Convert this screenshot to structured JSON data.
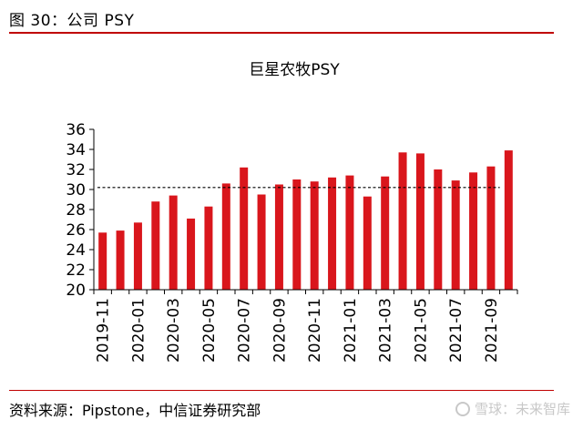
{
  "header": {
    "figure_label": "图 30：公司 PSY"
  },
  "footer": {
    "source": "资料来源：Pipstone，中信证券研究部",
    "watermark": "雪球：未来智库"
  },
  "colors": {
    "bar": "#d9161c",
    "rule": "#c00000",
    "reference_line": "#000000"
  },
  "chart_data": {
    "type": "bar",
    "title": "巨星农牧PSY",
    "xlabel": "",
    "ylabel": "",
    "ylim": [
      20,
      36
    ],
    "yticks": [
      20,
      22,
      24,
      26,
      28,
      30,
      32,
      34,
      36
    ],
    "categories": [
      "2019-11",
      "2019-12",
      "2020-01",
      "2020-02",
      "2020-03",
      "2020-04",
      "2020-05",
      "2020-06",
      "2020-07",
      "2020-08",
      "2020-09",
      "2020-10",
      "2020-11",
      "2020-12",
      "2021-01",
      "2021-02",
      "2021-03",
      "2021-04",
      "2021-05",
      "2021-06",
      "2021-07",
      "2021-08",
      "2021-09",
      "2021-10"
    ],
    "tick_labels_shown": [
      "2019-11",
      "2020-01",
      "2020-03",
      "2020-05",
      "2020-07",
      "2020-09",
      "2020-11",
      "2021-01",
      "2021-03",
      "2021-05",
      "2021-07",
      "2021-09"
    ],
    "values": [
      25.7,
      25.9,
      26.7,
      28.8,
      29.4,
      27.1,
      28.3,
      30.6,
      32.2,
      29.5,
      30.5,
      31.0,
      30.8,
      31.2,
      31.4,
      29.3,
      31.3,
      33.7,
      33.6,
      32.0,
      30.9,
      31.7,
      32.3,
      33.9
    ],
    "reference_line": {
      "value": 30.2,
      "style": "dashed"
    },
    "grid": false,
    "legend": "none"
  }
}
